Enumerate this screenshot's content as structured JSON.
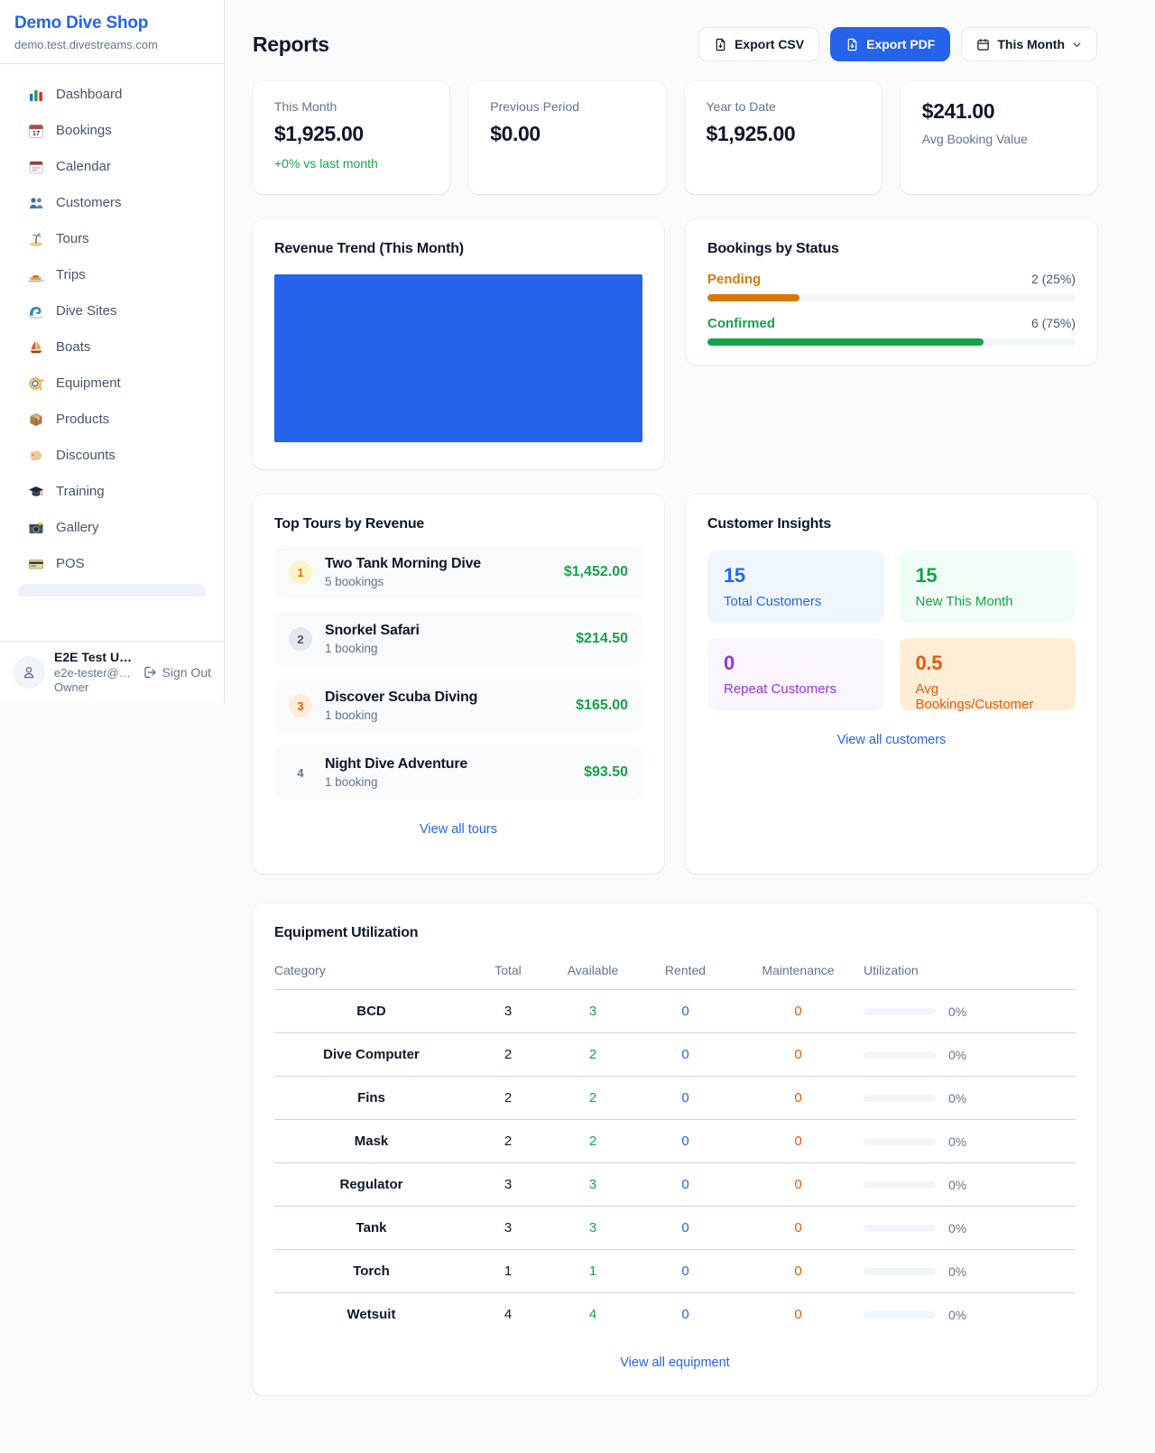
{
  "sidebar": {
    "shop_name": "Demo Dive Shop",
    "shop_domain": "demo.test.divestreams.com",
    "items": [
      {
        "icon": "bar-chart",
        "label": "Dashboard"
      },
      {
        "icon": "calendar-date",
        "label": "Bookings"
      },
      {
        "icon": "notepad-calendar",
        "label": "Calendar"
      },
      {
        "icon": "people",
        "label": "Customers"
      },
      {
        "icon": "palm-island",
        "label": "Tours"
      },
      {
        "icon": "speedboat",
        "label": "Trips"
      },
      {
        "icon": "wave",
        "label": "Dive Sites"
      },
      {
        "icon": "sailboat",
        "label": "Boats"
      },
      {
        "icon": "diving-mask",
        "label": "Equipment"
      },
      {
        "icon": "package",
        "label": "Products"
      },
      {
        "icon": "tag",
        "label": "Discounts"
      },
      {
        "icon": "graduation-cap",
        "label": "Training"
      },
      {
        "icon": "camera",
        "label": "Gallery"
      },
      {
        "icon": "credit-card",
        "label": "POS"
      }
    ],
    "user": {
      "name": "E2E Test U…",
      "email": "e2e-tester@…",
      "role": "Owner",
      "sign_out_label": "Sign Out"
    }
  },
  "header": {
    "title": "Reports",
    "export_csv_label": "Export CSV",
    "export_pdf_label": "Export PDF",
    "period_label": "This Month"
  },
  "stats": [
    {
      "label": "This Month",
      "value": "$1,925.00",
      "delta": "+0% vs last month"
    },
    {
      "label": "Previous Period",
      "value": "$0.00"
    },
    {
      "label": "Year to Date",
      "value": "$1,925.00"
    },
    {
      "label": "Avg Booking Value",
      "value": "$241.00"
    }
  ],
  "revenue_trend": {
    "title": "Revenue Trend (This Month)",
    "bar_color": "#2563eb"
  },
  "bookings_by_status": {
    "title": "Bookings by Status",
    "rows": [
      {
        "label": "Pending",
        "count_text": "2 (25%)",
        "percent": 25,
        "color": "#d97706"
      },
      {
        "label": "Confirmed",
        "count_text": "6 (75%)",
        "percent": 75,
        "color": "#16a34a"
      }
    ]
  },
  "top_tours": {
    "title": "Top Tours by Revenue",
    "rows": [
      {
        "rank": "1",
        "name": "Two Tank Morning Dive",
        "bookings": "5 bookings",
        "amount": "$1,452.00"
      },
      {
        "rank": "2",
        "name": "Snorkel Safari",
        "bookings": "1 booking",
        "amount": "$214.50"
      },
      {
        "rank": "3",
        "name": "Discover Scuba Diving",
        "bookings": "1 booking",
        "amount": "$165.00"
      },
      {
        "rank": "4",
        "name": "Night Dive Adventure",
        "bookings": "1 booking",
        "amount": "$93.50"
      }
    ],
    "view_all_label": "View all tours",
    "amount_color": "#16a34a"
  },
  "customer_insights": {
    "title": "Customer Insights",
    "tiles": [
      {
        "value": "15",
        "label": "Total Customers",
        "color": "#2563eb",
        "bg": "#eff6ff"
      },
      {
        "value": "15",
        "label": "New This Month",
        "color": "#16a34a",
        "bg": "#f0fdf4"
      },
      {
        "value": "0",
        "label": "Repeat Customers",
        "color": "#9333ea",
        "bg": "#faf5ff"
      },
      {
        "value": "0.5",
        "label": "Avg Bookings/Customer",
        "color": "#ea580c",
        "bg": "#ffedd5"
      }
    ],
    "view_all_label": "View all customers"
  },
  "equipment": {
    "title": "Equipment Utilization",
    "columns": [
      "Category",
      "Total",
      "Available",
      "Rented",
      "Maintenance",
      "Utilization"
    ],
    "rows": [
      {
        "category": "BCD",
        "total": "3",
        "available": "3",
        "rented": "0",
        "maintenance": "0",
        "utilization_label": "0%",
        "utilization_percent": 0
      },
      {
        "category": "Dive Computer",
        "total": "2",
        "available": "2",
        "rented": "0",
        "maintenance": "0",
        "utilization_label": "0%",
        "utilization_percent": 0
      },
      {
        "category": "Fins",
        "total": "2",
        "available": "2",
        "rented": "0",
        "maintenance": "0",
        "utilization_label": "0%",
        "utilization_percent": 0
      },
      {
        "category": "Mask",
        "total": "2",
        "available": "2",
        "rented": "0",
        "maintenance": "0",
        "utilization_label": "0%",
        "utilization_percent": 0
      },
      {
        "category": "Regulator",
        "total": "3",
        "available": "3",
        "rented": "0",
        "maintenance": "0",
        "utilization_label": "0%",
        "utilization_percent": 0
      },
      {
        "category": "Tank",
        "total": "3",
        "available": "3",
        "rented": "0",
        "maintenance": "0",
        "utilization_label": "0%",
        "utilization_percent": 0
      },
      {
        "category": "Torch",
        "total": "1",
        "available": "1",
        "rented": "0",
        "maintenance": "0",
        "utilization_label": "0%",
        "utilization_percent": 0
      },
      {
        "category": "Wetsuit",
        "total": "4",
        "available": "4",
        "rented": "0",
        "maintenance": "0",
        "utilization_label": "0%",
        "utilization_percent": 0
      }
    ],
    "view_all_label": "View all equipment",
    "status_colors": {
      "available": "#16a34a",
      "rented": "#2563eb",
      "maintenance": "#ea580c"
    }
  }
}
